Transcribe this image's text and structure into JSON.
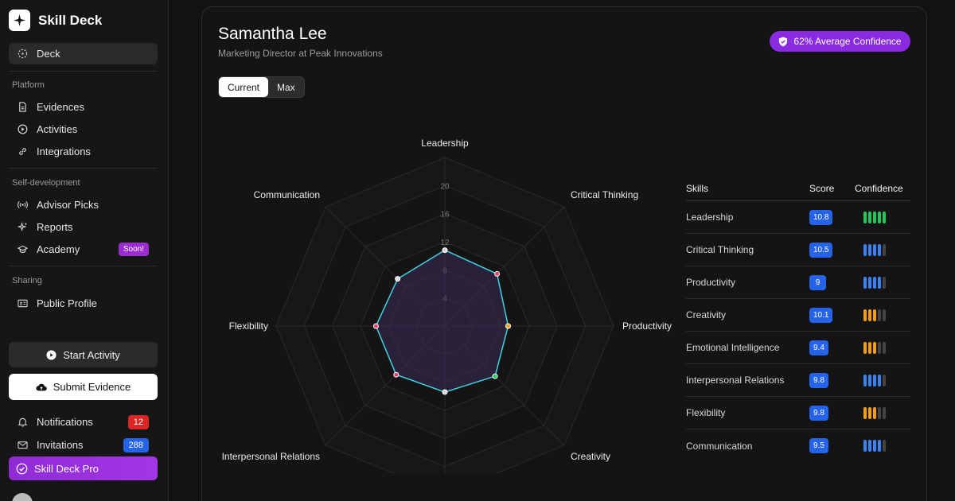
{
  "sidebar": {
    "brand": "Skill Deck",
    "nav_deck": "Deck",
    "platform_label": "Platform",
    "platform_items": [
      "Evidences",
      "Activities",
      "Integrations"
    ],
    "selfdev_label": "Self-development",
    "selfdev_items": [
      "Advisor Picks",
      "Reports",
      "Academy"
    ],
    "soon_badge": "Soon!",
    "sharing_label": "Sharing",
    "sharing_items": [
      "Public Profile"
    ],
    "start_activity": "Start Activity",
    "submit_evidence": "Submit Evidence",
    "notifications_label": "Notifications",
    "notifications_count": "12",
    "invitations_label": "Invitations",
    "invitations_count": "288",
    "pro_label": "Skill Deck Pro"
  },
  "profile": {
    "name": "Samantha Lee",
    "title": "Marketing Director at Peak Innovations",
    "confidence_pill": "62% Average Confidence"
  },
  "toggle": {
    "current": "Current",
    "max": "Max",
    "selected": "Current"
  },
  "chart_data": {
    "type": "radar",
    "axes": [
      "Leadership",
      "Critical Thinking",
      "Productivity",
      "Creativity",
      "Emotional Intelligence",
      "Interpersonal Relations",
      "Flexibility",
      "Communication"
    ],
    "axis_labels_shown": [
      "Leadership",
      "Critical Thinking",
      "Productivity",
      "Creativity",
      "",
      "Interpersonal Relations",
      "Flexibility",
      "Communication"
    ],
    "ticks": [
      4,
      8,
      12,
      16,
      20
    ],
    "rmax": 20,
    "values": [
      10.8,
      10.5,
      9,
      10.1,
      9.4,
      9.8,
      9.8,
      9.5
    ],
    "point_colors": [
      "#d9d9d9",
      "#e8406a",
      "#f59e0b",
      "#22c55e",
      "#d9d9d9",
      "#e8406a",
      "#e8406a",
      "#d9d9d9"
    ],
    "line_color": "#3fd3e0",
    "fill_color": "#3a2a5a"
  },
  "table": {
    "headers": {
      "skills": "Skills",
      "score": "Score",
      "confidence": "Confidence"
    },
    "rows": [
      {
        "skill": "Leadership",
        "score": "10.8",
        "level": 5,
        "color": "#22c55e"
      },
      {
        "skill": "Critical Thinking",
        "score": "10.5",
        "level": 4,
        "color": "#3b82f6"
      },
      {
        "skill": "Productivity",
        "score": "9",
        "level": 4,
        "color": "#3b82f6"
      },
      {
        "skill": "Creativity",
        "score": "10.1",
        "level": 3,
        "color": "#f59e0b"
      },
      {
        "skill": "Emotional Intelligence",
        "score": "9.4",
        "level": 3,
        "color": "#f59e0b"
      },
      {
        "skill": "Interpersonal Relations",
        "score": "9.8",
        "level": 4,
        "color": "#3b82f6"
      },
      {
        "skill": "Flexibility",
        "score": "9.8",
        "level": 3,
        "color": "#f59e0b"
      },
      {
        "skill": "Communication",
        "score": "9.5",
        "level": 4,
        "color": "#3b82f6"
      }
    ]
  }
}
